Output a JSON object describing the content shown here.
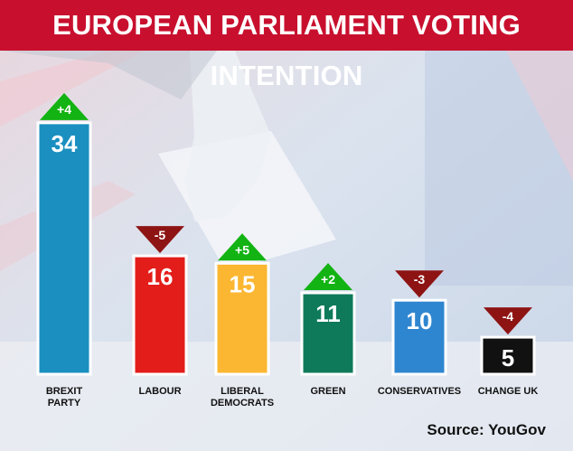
{
  "title": "EUROPEAN PARLIAMENT VOTING INTENTION",
  "source": "Source: YouGov",
  "chart_data": {
    "type": "bar",
    "title": "EUROPEAN PARLIAMENT VOTING INTENTION",
    "categories": [
      "BREXIT PARTY",
      "LABOUR",
      "LIBERAL DEMOCRATS",
      "GREEN",
      "CONSERVATIVES",
      "CHANGE UK"
    ],
    "category_lines": [
      [
        "BREXIT",
        "PARTY"
      ],
      [
        "LABOUR"
      ],
      [
        "LIBERAL",
        "DEMOCRATS"
      ],
      [
        "GREEN"
      ],
      [
        "CONSERVATIVES"
      ],
      [
        "CHANGE UK"
      ]
    ],
    "values": [
      34,
      16,
      15,
      11,
      10,
      5
    ],
    "changes": [
      "+4",
      "-5",
      "+5",
      "+2",
      "-3",
      "-4"
    ],
    "colors": [
      "#1a8fc0",
      "#e31d1a",
      "#fbb731",
      "#0e7a5a",
      "#2f86d0",
      "#111111"
    ],
    "change_colors": {
      "up": "#12b312",
      "down": "#8e1414"
    },
    "xlabel": "",
    "ylabel": "",
    "grid": false,
    "legend": "none"
  }
}
